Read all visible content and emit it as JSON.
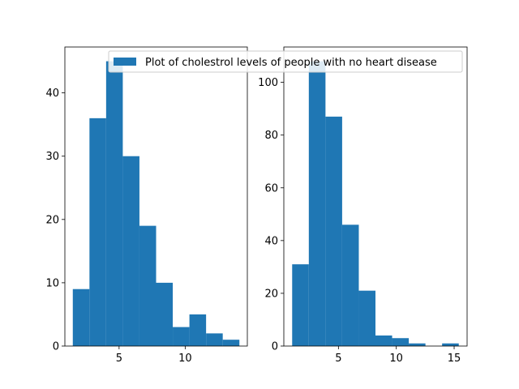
{
  "chart_data": [
    {
      "type": "bar",
      "subtype": "histogram",
      "bins": [
        {
          "x0": 1.5,
          "x1": 2.76,
          "value": 9
        },
        {
          "x0": 2.76,
          "x1": 4.02,
          "value": 36
        },
        {
          "x0": 4.02,
          "x1": 5.28,
          "value": 45
        },
        {
          "x0": 5.28,
          "x1": 6.54,
          "value": 30
        },
        {
          "x0": 6.54,
          "x1": 7.8,
          "value": 19
        },
        {
          "x0": 7.8,
          "x1": 9.06,
          "value": 10
        },
        {
          "x0": 9.06,
          "x1": 10.32,
          "value": 3
        },
        {
          "x0": 10.32,
          "x1": 11.58,
          "value": 5
        },
        {
          "x0": 11.58,
          "x1": 12.84,
          "value": 2
        },
        {
          "x0": 12.84,
          "x1": 14.1,
          "value": 1
        }
      ],
      "xlim": [
        0.9,
        14.7
      ],
      "ylim": [
        0,
        47.25
      ],
      "xticks": [
        5,
        10
      ],
      "yticks": [
        0,
        10,
        20,
        30,
        40
      ],
      "color": "#1f77b4",
      "legend": {
        "label": "Plot of cholestrol levels of people with no heart disease",
        "placement": "upper right"
      }
    },
    {
      "type": "bar",
      "subtype": "histogram",
      "bins": [
        {
          "x0": 1.0,
          "x1": 2.44,
          "value": 31
        },
        {
          "x0": 2.44,
          "x1": 3.88,
          "value": 108
        },
        {
          "x0": 3.88,
          "x1": 5.32,
          "value": 87
        },
        {
          "x0": 5.32,
          "x1": 6.76,
          "value": 46
        },
        {
          "x0": 6.76,
          "x1": 8.2,
          "value": 21
        },
        {
          "x0": 8.2,
          "x1": 9.64,
          "value": 4
        },
        {
          "x0": 9.64,
          "x1": 11.08,
          "value": 3
        },
        {
          "x0": 11.08,
          "x1": 12.52,
          "value": 1
        },
        {
          "x0": 12.52,
          "x1": 13.96,
          "value": 0
        },
        {
          "x0": 13.96,
          "x1": 15.4,
          "value": 1
        }
      ],
      "xlim": [
        0.28,
        16.12
      ],
      "ylim": [
        0,
        113.4
      ],
      "xticks": [
        5,
        10,
        15
      ],
      "yticks": [
        0,
        20,
        40,
        60,
        80,
        100
      ],
      "color": "#1f77b4"
    }
  ]
}
